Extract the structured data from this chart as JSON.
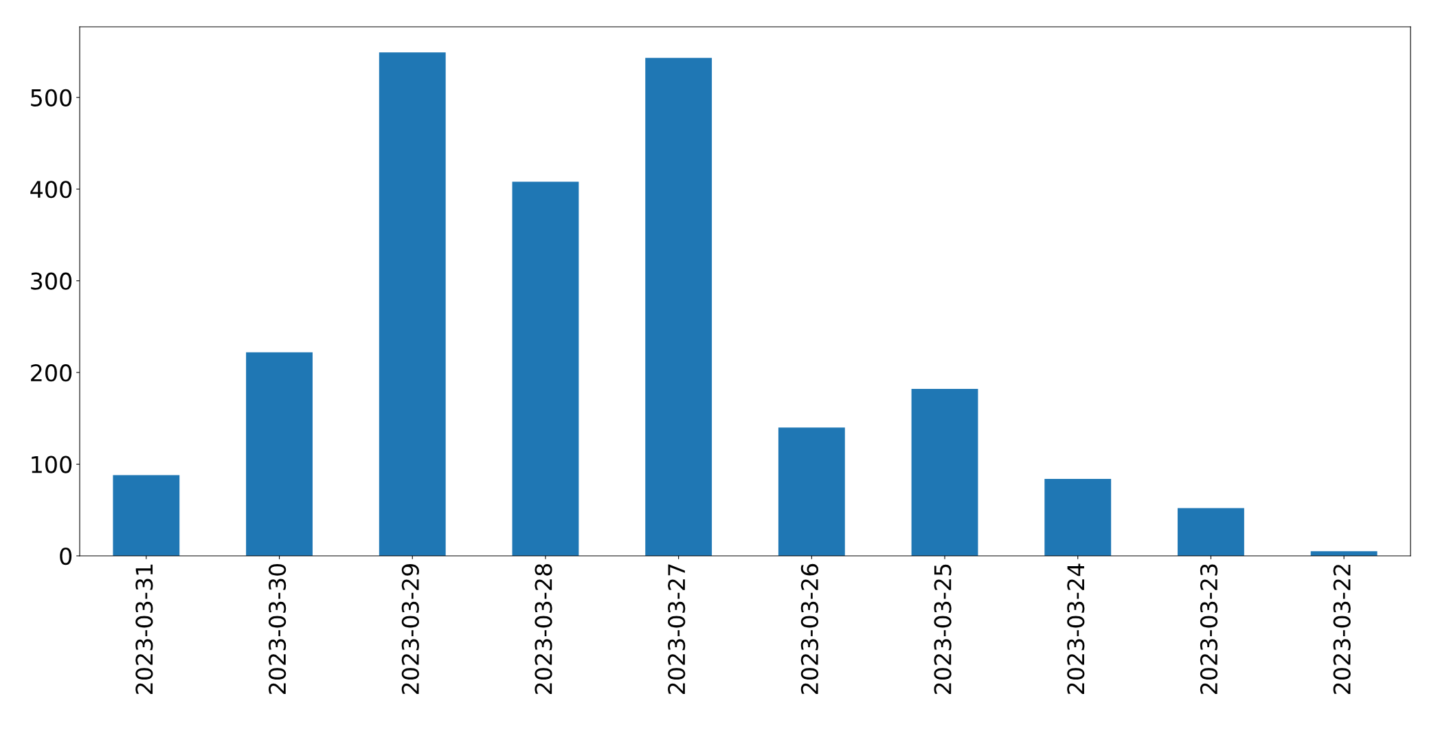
{
  "chart_data": {
    "type": "bar",
    "categories": [
      "2023-03-31",
      "2023-03-30",
      "2023-03-29",
      "2023-03-28",
      "2023-03-27",
      "2023-03-26",
      "2023-03-25",
      "2023-03-24",
      "2023-03-23",
      "2023-03-22"
    ],
    "values": [
      88,
      222,
      549,
      408,
      543,
      140,
      182,
      84,
      52,
      5
    ],
    "color": "#1f77b4",
    "ylim": [
      0,
      577
    ],
    "yticks": [
      0,
      100,
      200,
      300,
      400,
      500
    ],
    "grid": false,
    "legend": false
  }
}
